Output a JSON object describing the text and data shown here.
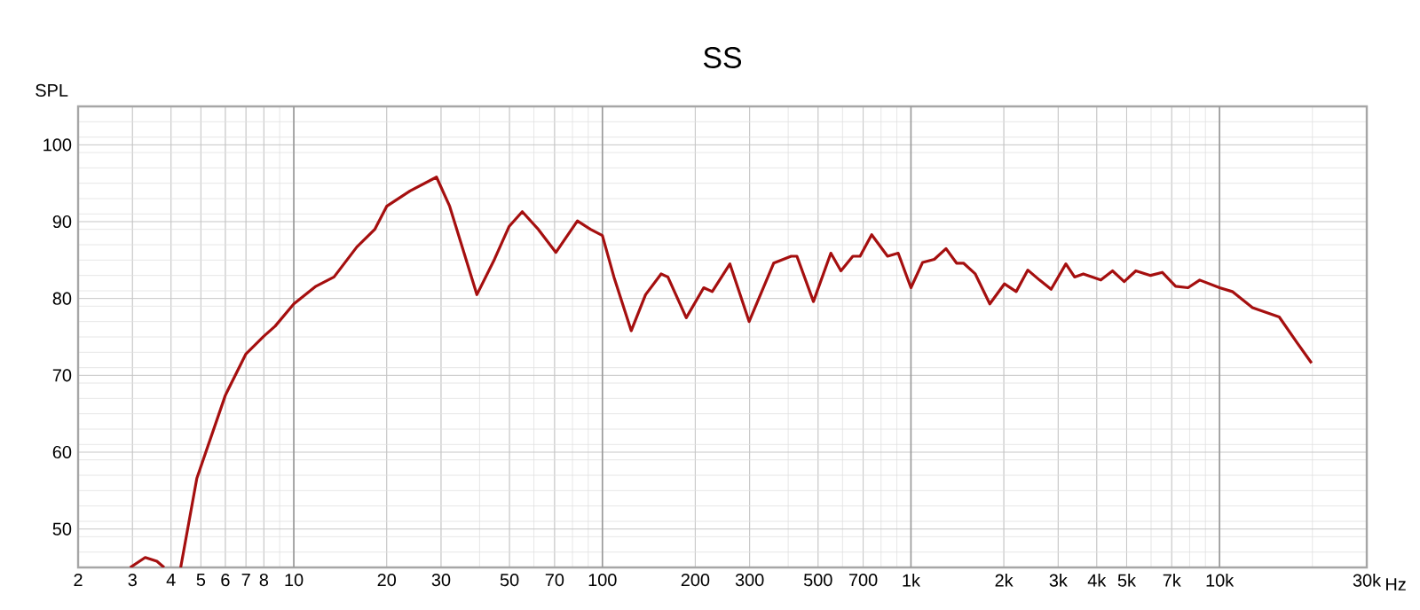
{
  "chart_data": {
    "type": "line",
    "title": "SS",
    "ylabel": "SPL",
    "xlim": [
      2,
      30000
    ],
    "ylim": [
      45,
      105
    ],
    "log": "x",
    "grid": true,
    "marker": "none",
    "line_style": "solid",
    "xticks": [
      2,
      3,
      4,
      5,
      6,
      7,
      8,
      10,
      20,
      30,
      50,
      70,
      100,
      200,
      300,
      500,
      700,
      {
        "value": 1000,
        "label": "1k"
      },
      {
        "value": 2000,
        "label": "2k"
      },
      {
        "value": 3000,
        "label": "3k"
      },
      {
        "value": 4000,
        "label": "4k"
      },
      {
        "value": 5000,
        "label": "5k"
      },
      {
        "value": 7000,
        "label": "7k"
      },
      {
        "value": 10000,
        "label": "10k"
      },
      {
        "value": 30000,
        "label": "30k"
      }
    ],
    "xlabel": "Hz",
    "yticks": [
      {
        "value": 45,
        "label": null
      },
      50,
      60,
      70,
      80,
      90,
      100,
      {
        "value": 105,
        "label": null
      }
    ],
    "series": [
      {
        "color": "#a50f0f",
        "x": [
          2.95,
          3.3,
          3.6,
          3.8,
          4.0,
          4.3,
          4.85,
          6,
          7,
          8,
          8.7,
          10,
          11.8,
          13.5,
          16,
          18.3,
          20,
          23.8,
          29,
          32,
          39.2,
          44.7,
          49.9,
          55,
          62,
          70.7,
          83,
          91.5,
          100,
          109,
          124,
          138,
          155,
          163,
          187,
          213,
          227,
          259,
          299,
          359,
          409,
          427,
          483,
          550,
          593,
          648,
          684,
          746,
          840,
          909,
          1000,
          1091,
          1190,
          1299,
          1405,
          1480,
          1616,
          1801,
          2008,
          2193,
          2392,
          2610,
          2846,
          3177,
          3390,
          3619,
          4124,
          4500,
          4909,
          5355,
          5976,
          6521,
          7205,
          7906,
          8624,
          10000,
          10998,
          12786,
          15610,
          17799,
          19875
        ],
        "values": [
          45,
          46.3,
          45.8,
          45,
          null,
          45,
          56.6,
          67.4,
          72.8,
          75.1,
          76.4,
          79.3,
          81.6,
          82.8,
          86.7,
          89,
          92,
          94,
          95.8,
          92,
          80.5,
          85.1,
          89.4,
          91.3,
          89,
          86,
          90.1,
          89,
          88.2,
          82.8,
          75.8,
          80.5,
          83.2,
          82.8,
          77.5,
          81.4,
          80.9,
          84.5,
          77,
          84.6,
          85.5,
          85.5,
          79.6,
          85.9,
          83.6,
          85.5,
          85.5,
          88.3,
          85.5,
          85.9,
          81.4,
          84.7,
          85.1,
          86.5,
          84.6,
          84.6,
          83.2,
          79.3,
          81.9,
          80.9,
          83.7,
          82.4,
          81.2,
          84.5,
          82.8,
          83.2,
          82.4,
          83.6,
          82.2,
          83.6,
          83,
          83.4,
          81.6,
          81.4,
          82.4,
          81.4,
          80.9,
          78.8,
          77.6,
          74.3,
          71.6
        ]
      }
    ]
  }
}
